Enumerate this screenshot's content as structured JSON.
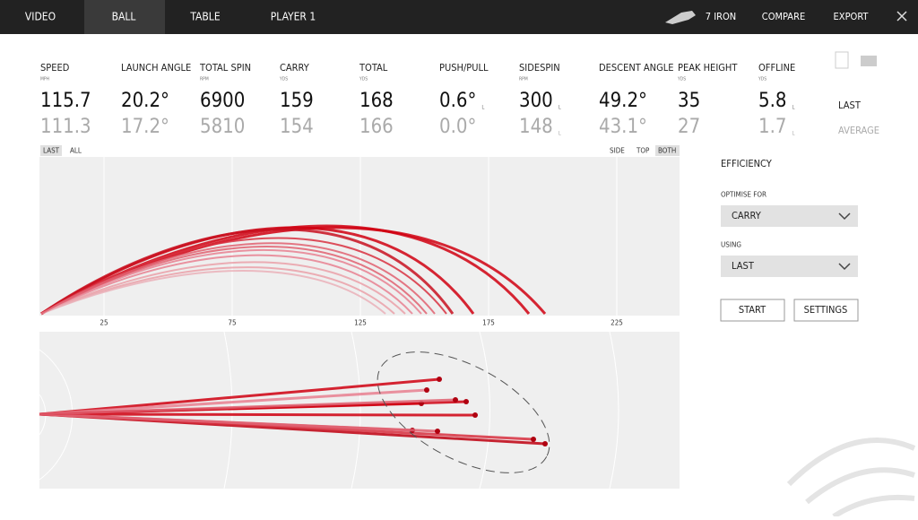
{
  "nav": {
    "tabs": [
      "VIDEO",
      "BALL",
      "TABLE",
      "PLAYER 1"
    ],
    "club": "7 IRON",
    "compare": "COMPARE",
    "export": "EXPORT"
  },
  "metrics": [
    {
      "label": "SPEED",
      "unit": "MPH",
      "last": "115.7",
      "average": "111.3"
    },
    {
      "label": "LAUNCH ANGLE",
      "last": "20.2°",
      "average": "17.2°"
    },
    {
      "label": "TOTAL SPIN",
      "unit": "RPM",
      "last": "6900",
      "average": "5810"
    },
    {
      "label": "CARRY",
      "unit": "YDS",
      "last": "159",
      "average": "154"
    },
    {
      "label": "TOTAL",
      "unit": "YDS",
      "last": "168",
      "average": "166"
    },
    {
      "label": "PUSH/PULL",
      "last": "0.6°",
      "average": "0.0°",
      "last_side": "L"
    },
    {
      "label": "SIDESPIN",
      "unit": "RPM",
      "last": "300",
      "average": "148",
      "last_side": "L",
      "average_side": "L"
    },
    {
      "label": "DESCENT ANGLE",
      "last": "49.2°",
      "average": "43.1°"
    },
    {
      "label": "PEAK HEIGHT",
      "unit": "YDS",
      "last": "35",
      "average": "27"
    },
    {
      "label": "OFFLINE",
      "unit": "YDS",
      "last": "5.8",
      "average": "1.7",
      "last_side": "L",
      "average_side": "L"
    }
  ],
  "row_labels": {
    "last": "LAST",
    "average": "AVERAGE"
  },
  "shot_filter": [
    "LAST",
    "ALL"
  ],
  "views": [
    "SIDE",
    "TOP",
    "BOTH"
  ],
  "distance_axis": [
    "25",
    "75",
    "125",
    "175",
    "225"
  ],
  "panel": {
    "title": "EFFICIENCY",
    "optimise_label": "OPTIMISE FOR",
    "optimise_value": "CARRY",
    "using_label": "USING",
    "using_value": "LAST",
    "start": "START",
    "settings": "SETTINGS"
  }
}
